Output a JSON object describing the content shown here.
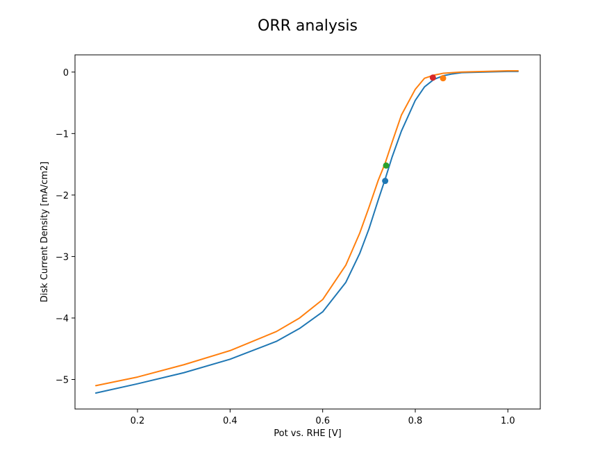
{
  "chart_data": {
    "type": "line",
    "title": "ORR analysis",
    "xlabel": "Pot vs. RHE [V]",
    "ylabel": "Disk Current Density [mA/cm2]",
    "xlim": [
      0.065,
      1.07
    ],
    "ylim": [
      -5.48,
      0.28
    ],
    "xticks": [
      0.2,
      0.4,
      0.6,
      0.8,
      1.0
    ],
    "xtick_labels": [
      "0.2",
      "0.4",
      "0.6",
      "0.8",
      "1.0"
    ],
    "yticks": [
      0,
      -1,
      -2,
      -3,
      -4,
      -5
    ],
    "ytick_labels": [
      "0",
      "−1",
      "−2",
      "−3",
      "−4",
      "−5"
    ],
    "grid": false,
    "series": [
      {
        "color": "#1f77b4",
        "x": [
          0.11,
          0.2,
          0.3,
          0.4,
          0.5,
          0.55,
          0.6,
          0.65,
          0.68,
          0.7,
          0.72,
          0.735,
          0.75,
          0.77,
          0.8,
          0.82,
          0.84,
          0.86,
          0.88,
          0.9,
          0.95,
          1.0,
          1.022
        ],
        "y": [
          -5.22,
          -5.07,
          -4.89,
          -4.67,
          -4.38,
          -4.17,
          -3.9,
          -3.42,
          -2.95,
          -2.55,
          -2.08,
          -1.74,
          -1.38,
          -0.96,
          -0.46,
          -0.24,
          -0.12,
          -0.06,
          -0.03,
          -0.01,
          0.0,
          0.01,
          0.01
        ]
      },
      {
        "color": "#ff7f0e",
        "x": [
          0.11,
          0.2,
          0.3,
          0.4,
          0.5,
          0.55,
          0.6,
          0.65,
          0.68,
          0.7,
          0.72,
          0.735,
          0.75,
          0.77,
          0.8,
          0.82,
          0.84,
          0.86,
          0.88,
          0.9,
          0.95,
          1.0,
          1.022
        ],
        "y": [
          -5.1,
          -4.96,
          -4.76,
          -4.53,
          -4.22,
          -4.0,
          -3.7,
          -3.14,
          -2.62,
          -2.2,
          -1.76,
          -1.48,
          -1.14,
          -0.7,
          -0.28,
          -0.1,
          -0.05,
          -0.02,
          -0.01,
          0.0,
          0.01,
          0.02,
          0.02
        ]
      }
    ],
    "markers": [
      {
        "x": 0.735,
        "y": -1.77,
        "color": "#1f77b4"
      },
      {
        "x": 0.86,
        "y": -0.1,
        "color": "#ff7f0e"
      },
      {
        "x": 0.737,
        "y": -1.52,
        "color": "#2ca02c"
      },
      {
        "x": 0.838,
        "y": -0.09,
        "color": "#d62728"
      }
    ]
  }
}
